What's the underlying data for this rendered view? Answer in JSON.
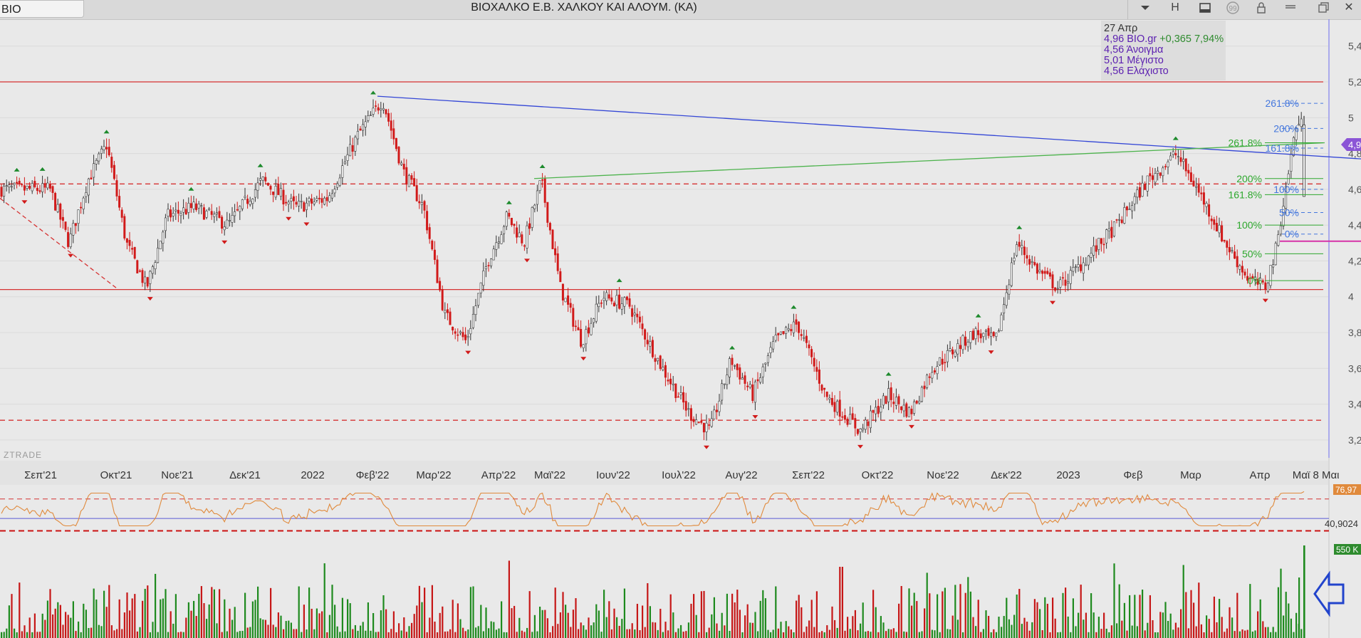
{
  "window": {
    "symbol": "BIO",
    "title": "ΒΙΟΧΑΛΚΟ Ε.Β. ΧΑΛΚΟΥ  ΚΑΙ  ΑΛΟΥΜ. (ΚΑ)",
    "toolbar_icons": [
      "chevron-down-icon",
      "h-icon",
      "window-icon",
      "quote-icon",
      "lock-icon",
      "menu-icon",
      "restore-icon",
      "close-icon"
    ],
    "h_label": "H",
    "close_label": "✕"
  },
  "info_box": {
    "date": "27 Απρ",
    "line1": "4,96 BIO.gr",
    "change": "+0,365 7,94%",
    "open": "4,56 Άνοιγμα",
    "high": "5,01 Μέγιστο",
    "low": "4,56 Ελάχιστο"
  },
  "watermark": "ZTRADE",
  "colors": {
    "up": "#2e8b2e",
    "down": "#d11a1a",
    "resistance": "#d63333",
    "trend_blue": "#3346d6",
    "trend_green": "#4db34d",
    "rsi": "#e08a3c",
    "fib_green": "#2ea82e",
    "fib_blue": "#4477dd",
    "price_badge": "#8b55d6",
    "accent_magenta": "#d633a8"
  },
  "chart_data": {
    "type": "candlestick",
    "symbol": "BIO.gr",
    "x_ticks": [
      "Σεπ'21",
      "Οκτ'21",
      "Νοε'21",
      "Δεκ'21",
      "2022",
      "Φεβ'22",
      "Μαρ'22",
      "Απρ'22",
      "Μαϊ'22",
      "Ιουν'22",
      "Ιουλ'22",
      "Αυγ'22",
      "Σεπ'22",
      "Οκτ'22",
      "Νοε'22",
      "Δεκ'22",
      "2023",
      "Φεβ",
      "Μαρ",
      "Απρ",
      "Μαϊ",
      "8 Μαι"
    ],
    "y_ticks": [
      "5,4",
      "5,2",
      "5",
      "4,8",
      "4,6",
      "4,4",
      "4,2",
      "4",
      "3,8",
      "3,6",
      "3,4",
      "3,2"
    ],
    "ylim": [
      3.1,
      5.55
    ],
    "last_price": "4,96",
    "price_path": [
      [
        "Σεπ'21",
        4.6
      ],
      [
        "Σεπ'21",
        4.3
      ],
      [
        "Σεπ'21",
        4.65
      ],
      [
        "Σεπ'21",
        4.85
      ],
      [
        "Οκτ'21",
        4.3
      ],
      [
        "Οκτ'21",
        4.05
      ],
      [
        "Οκτ'21",
        4.45
      ],
      [
        "Νοε'21",
        4.5
      ],
      [
        "Νοε'21",
        4.4
      ],
      [
        "Δεκ'21",
        4.65
      ],
      [
        "Δεκ'21",
        4.5
      ],
      [
        "2022",
        4.55
      ],
      [
        "2022",
        4.9
      ],
      [
        "Φεβ'22",
        5.1
      ],
      [
        "Φεβ'22",
        4.7
      ],
      [
        "Φεβ'22",
        4.5
      ],
      [
        "Μαρ'22",
        3.9
      ],
      [
        "Μαρ'22",
        3.75
      ],
      [
        "Μαρ'22",
        4.2
      ],
      [
        "Απρ'22",
        4.45
      ],
      [
        "Απρ'22",
        4.3
      ],
      [
        "Απρ'22",
        4.65
      ],
      [
        "Μαϊ'22",
        4.05
      ],
      [
        "Μαϊ'22",
        3.75
      ],
      [
        "Μαϊ'22",
        4.0
      ],
      [
        "Ιουν'22",
        3.95
      ],
      [
        "Ιουν'22",
        3.6
      ],
      [
        "Ιουλ'22",
        3.35
      ],
      [
        "Ιουλ'22",
        3.25
      ],
      [
        "Ιουλ'22",
        3.65
      ],
      [
        "Αυγ'22",
        3.45
      ],
      [
        "Αυγ'22",
        3.75
      ],
      [
        "Αυγ'22",
        3.85
      ],
      [
        "Σεπ'22",
        3.45
      ],
      [
        "Σεπ'22",
        3.25
      ],
      [
        "Οκτ'22",
        3.45
      ],
      [
        "Οκτ'22",
        3.35
      ],
      [
        "Οκτ'22",
        3.6
      ],
      [
        "Νοε'22",
        3.7
      ],
      [
        "Νοε'22",
        3.8
      ],
      [
        "Νοε'22",
        3.75
      ],
      [
        "Δεκ'22",
        4.3
      ],
      [
        "Δεκ'22",
        4.15
      ],
      [
        "Δεκ'22",
        4.05
      ],
      [
        "2023",
        4.2
      ],
      [
        "2023",
        4.4
      ],
      [
        "Φεβ",
        4.65
      ],
      [
        "Φεβ",
        4.8
      ],
      [
        "Μαρ",
        4.55
      ],
      [
        "Μαρ",
        4.3
      ],
      [
        "Μαρ",
        4.1
      ],
      [
        "Απρ",
        4.05
      ],
      [
        "Απρ",
        4.25
      ],
      [
        "Απρ",
        4.6
      ],
      [
        "Απρ",
        4.96
      ]
    ],
    "horizontal_levels": [
      {
        "y": 5.2,
        "style": "solid",
        "color": "#d63333"
      },
      {
        "y": 4.63,
        "style": "dashed",
        "color": "#d63333"
      },
      {
        "y": 4.04,
        "style": "solid",
        "color": "#d63333"
      },
      {
        "y": 3.31,
        "style": "dashed",
        "color": "#d63333"
      }
    ],
    "trendlines": [
      {
        "from": [
          "Φεβ'22",
          5.12
        ],
        "to": [
          "8 Μαι",
          4.77
        ],
        "color": "#3346d6"
      },
      {
        "from": [
          "Απρ'22",
          4.66
        ],
        "to": [
          "8 Μαι",
          4.86
        ],
        "color": "#4db34d"
      },
      {
        "from": [
          "Σεπ'21",
          4.55
        ],
        "to": [
          "Οκτ'21",
          4.05
        ],
        "color": "#d63333",
        "dashed": true
      }
    ],
    "fib_labels": [
      {
        "text": "261.8%",
        "y": 5.08,
        "color": "#4477dd"
      },
      {
        "text": "200%",
        "y": 4.94,
        "color": "#4477dd"
      },
      {
        "text": "261.8%",
        "y": 4.86,
        "color": "#2ea82e"
      },
      {
        "text": "161.8%",
        "y": 4.83,
        "color": "#4477dd"
      },
      {
        "text": "200%",
        "y": 4.66,
        "color": "#2ea82e"
      },
      {
        "text": "100%",
        "y": 4.6,
        "color": "#4477dd"
      },
      {
        "text": "161.8%",
        "y": 4.57,
        "color": "#2ea82e"
      },
      {
        "text": "50%",
        "y": 4.47,
        "color": "#4477dd"
      },
      {
        "text": "100%",
        "y": 4.4,
        "color": "#2ea82e"
      },
      {
        "text": "0%",
        "y": 4.35,
        "color": "#4477dd"
      },
      {
        "text": "50%",
        "y": 4.24,
        "color": "#2ea82e"
      },
      {
        "text": "0%",
        "y": 4.09,
        "color": "#2ea82e"
      }
    ],
    "rsi": {
      "last_label": "76,97",
      "level_label": "40,9024",
      "upper_level": 70,
      "lower_level": 30,
      "mid_level": 40.9
    },
    "volume": {
      "last_label": "550 K"
    }
  }
}
